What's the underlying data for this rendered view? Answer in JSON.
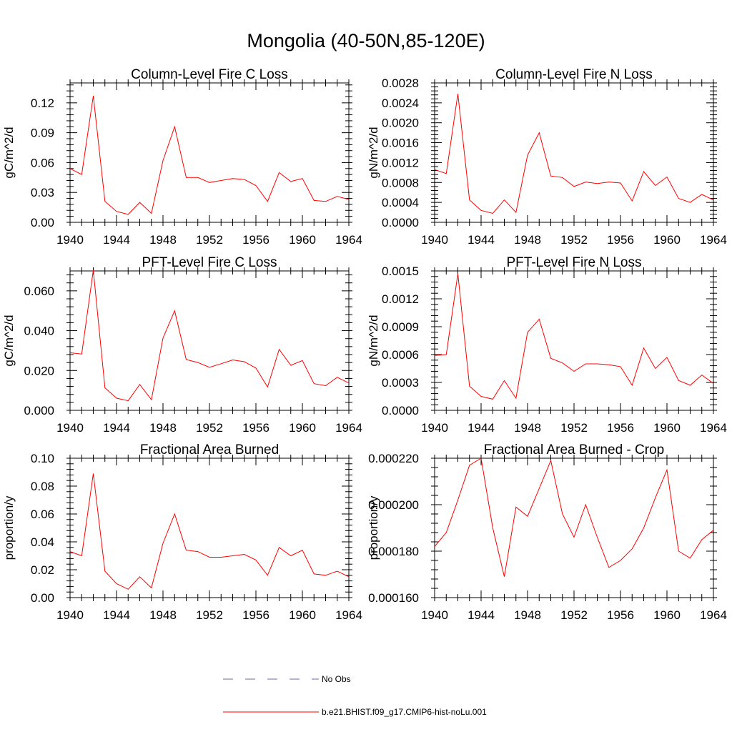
{
  "page_title": "Mongolia (40-50N,85-120E)",
  "legend": {
    "items": [
      {
        "label": "No Obs",
        "color": "#6a6ab0",
        "dash": true
      },
      {
        "label": "b.e21.BHIST.f09_g17.CMIP6-hist-noLu.001",
        "color": "#ff0000",
        "dash": false
      }
    ]
  },
  "chart_data": [
    {
      "type": "line",
      "title": "Column-Level Fire C Loss",
      "ylabel": "gC/m^2/d",
      "xlim": [
        1940,
        1964
      ],
      "ylim": [
        0,
        0.14
      ],
      "xticks": [
        "1940",
        "1944",
        "1948",
        "1952",
        "1956",
        "1960",
        "1964"
      ],
      "yticks": [
        "0.00",
        "0.03",
        "0.06",
        "0.09",
        "0.12"
      ],
      "ytick_values": [
        0,
        0.03,
        0.06,
        0.09,
        0.12
      ],
      "x": [
        1940,
        1941,
        1942,
        1943,
        1944,
        1945,
        1946,
        1947,
        1948,
        1949,
        1950,
        1951,
        1952,
        1953,
        1954,
        1955,
        1956,
        1957,
        1958,
        1959,
        1960,
        1961,
        1962,
        1963,
        1964
      ],
      "series": [
        {
          "name": "b.e21.BHIST.f09_g17.CMIP6-hist-noLu.001",
          "color": "#ff0000",
          "values": [
            0.054,
            0.048,
            0.127,
            0.021,
            0.011,
            0.008,
            0.02,
            0.009,
            0.062,
            0.096,
            0.045,
            0.045,
            0.04,
            0.042,
            0.044,
            0.043,
            0.037,
            0.021,
            0.05,
            0.041,
            0.044,
            0.022,
            0.021,
            0.026,
            0.023
          ]
        }
      ]
    },
    {
      "type": "line",
      "title": "Column-Level Fire N Loss",
      "ylabel": "gN/m^2/d",
      "xlim": [
        1940,
        1964
      ],
      "ylim": [
        0,
        0.0028
      ],
      "xticks": [
        "1940",
        "1944",
        "1948",
        "1952",
        "1956",
        "1960",
        "1964"
      ],
      "yticks": [
        "0.0000",
        "0.0004",
        "0.0008",
        "0.0012",
        "0.0016",
        "0.0020",
        "0.0024",
        "0.0028"
      ],
      "ytick_values": [
        0,
        0.0004,
        0.0008,
        0.0012,
        0.0016,
        0.002,
        0.0024,
        0.0028
      ],
      "x": [
        1940,
        1941,
        1942,
        1943,
        1944,
        1945,
        1946,
        1947,
        1948,
        1949,
        1950,
        1951,
        1952,
        1953,
        1954,
        1955,
        1956,
        1957,
        1958,
        1959,
        1960,
        1961,
        1962,
        1963,
        1964
      ],
      "series": [
        {
          "name": "b.e21.BHIST.f09_g17.CMIP6-hist-noLu.001",
          "color": "#ff0000",
          "values": [
            0.00106,
            0.00098,
            0.00258,
            0.00045,
            0.00024,
            0.00018,
            0.00045,
            0.0002,
            0.00135,
            0.0018,
            0.00093,
            0.0009,
            0.00072,
            0.00081,
            0.00078,
            0.00081,
            0.00079,
            0.00043,
            0.00102,
            0.00074,
            0.00091,
            0.00048,
            0.0004,
            0.00056,
            0.00045
          ]
        }
      ]
    },
    {
      "type": "line",
      "title": "PFT-Level Fire C Loss",
      "ylabel": "gC/m^2/d",
      "xlim": [
        1940,
        1964
      ],
      "ylim": [
        0,
        0.07
      ],
      "xticks": [
        "1940",
        "1944",
        "1948",
        "1952",
        "1956",
        "1960",
        "1964"
      ],
      "yticks": [
        "0.000",
        "0.020",
        "0.040",
        "0.060"
      ],
      "ytick_values": [
        0,
        0.02,
        0.04,
        0.06
      ],
      "x": [
        1940,
        1941,
        1942,
        1943,
        1944,
        1945,
        1946,
        1947,
        1948,
        1949,
        1950,
        1951,
        1952,
        1953,
        1954,
        1955,
        1956,
        1957,
        1958,
        1959,
        1960,
        1961,
        1962,
        1963,
        1964
      ],
      "series": [
        {
          "name": "b.e21.BHIST.f09_g17.CMIP6-hist-noLu.001",
          "color": "#ff0000",
          "values": [
            0.0289,
            0.0283,
            0.0704,
            0.0113,
            0.0061,
            0.0048,
            0.013,
            0.0053,
            0.0363,
            0.05,
            0.0255,
            0.024,
            0.0216,
            0.0234,
            0.0253,
            0.0244,
            0.0212,
            0.0117,
            0.0306,
            0.0226,
            0.025,
            0.0134,
            0.0124,
            0.0166,
            0.0137
          ]
        }
      ]
    },
    {
      "type": "line",
      "title": "PFT-Level Fire N Loss",
      "ylabel": "gN/m^2/d",
      "xlim": [
        1940,
        1964
      ],
      "ylim": [
        0,
        0.0015
      ],
      "xticks": [
        "1940",
        "1944",
        "1948",
        "1952",
        "1956",
        "1960",
        "1964"
      ],
      "yticks": [
        "0.0000",
        "0.0003",
        "0.0006",
        "0.0009",
        "0.0012",
        "0.0015"
      ],
      "ytick_values": [
        0,
        0.0003,
        0.0006,
        0.0009,
        0.0012,
        0.0015
      ],
      "x": [
        1940,
        1941,
        1942,
        1943,
        1944,
        1945,
        1946,
        1947,
        1948,
        1949,
        1950,
        1951,
        1952,
        1953,
        1954,
        1955,
        1956,
        1957,
        1958,
        1959,
        1960,
        1961,
        1962,
        1963,
        1964
      ],
      "series": [
        {
          "name": "b.e21.BHIST.f09_g17.CMIP6-hist-noLu.001",
          "color": "#ff0000",
          "values": [
            0.00059,
            0.0006,
            0.00147,
            0.00026,
            0.00015,
            0.00012,
            0.00032,
            0.00013,
            0.00084,
            0.00098,
            0.00056,
            0.00051,
            0.00042,
            0.0005,
            0.0005,
            0.00049,
            0.00047,
            0.00027,
            0.00067,
            0.00045,
            0.00057,
            0.00032,
            0.00027,
            0.00038,
            0.00029
          ]
        }
      ]
    },
    {
      "type": "line",
      "title": "Fractional Area Burned",
      "ylabel": "proportion/y",
      "xlim": [
        1940,
        1964
      ],
      "ylim": [
        0,
        0.1
      ],
      "xticks": [
        "1940",
        "1944",
        "1948",
        "1952",
        "1956",
        "1960",
        "1964"
      ],
      "yticks": [
        "0.00",
        "0.02",
        "0.04",
        "0.06",
        "0.08",
        "0.10"
      ],
      "ytick_values": [
        0,
        0.02,
        0.04,
        0.06,
        0.08,
        0.1
      ],
      "x": [
        1940,
        1941,
        1942,
        1943,
        1944,
        1945,
        1946,
        1947,
        1948,
        1949,
        1950,
        1951,
        1952,
        1953,
        1954,
        1955,
        1956,
        1957,
        1958,
        1959,
        1960,
        1961,
        1962,
        1963,
        1964
      ],
      "series": [
        {
          "name": "b.e21.BHIST.f09_g17.CMIP6-hist-noLu.001",
          "color": "#ff0000",
          "values": [
            0.033,
            0.03,
            0.089,
            0.019,
            0.01,
            0.006,
            0.015,
            0.007,
            0.039,
            0.06,
            0.034,
            0.033,
            0.029,
            0.029,
            0.03,
            0.031,
            0.027,
            0.016,
            0.036,
            0.03,
            0.034,
            0.017,
            0.016,
            0.019,
            0.015
          ]
        }
      ]
    },
    {
      "type": "line",
      "title": "Fractional Area Burned - Crop",
      "ylabel": "proportion/y",
      "xlim": [
        1940,
        1964
      ],
      "ylim": [
        0.00016,
        0.00022
      ],
      "xticks": [
        "1940",
        "1944",
        "1948",
        "1952",
        "1956",
        "1960",
        "1964"
      ],
      "yticks": [
        "0.000160",
        "0.000180",
        "0.000200",
        "0.000220"
      ],
      "ytick_values": [
        0.00016,
        0.00018,
        0.0002,
        0.00022
      ],
      "x": [
        1940,
        1941,
        1942,
        1943,
        1944,
        1945,
        1946,
        1947,
        1948,
        1949,
        1950,
        1951,
        1952,
        1953,
        1954,
        1955,
        1956,
        1957,
        1958,
        1959,
        1960,
        1961,
        1962,
        1963,
        1964
      ],
      "series": [
        {
          "name": "b.e21.BHIST.f09_g17.CMIP6-hist-noLu.001",
          "color": "#ff0000",
          "values": [
            0.000182,
            0.000188,
            0.000202,
            0.000217,
            0.00022,
            0.00019,
            0.000169,
            0.000199,
            0.000195,
            0.000207,
            0.000219,
            0.000196,
            0.000186,
            0.0002,
            0.000186,
            0.000173,
            0.000176,
            0.000181,
            0.00019,
            0.000203,
            0.000215,
            0.00018,
            0.000177,
            0.000185,
            0.000189
          ]
        }
      ]
    }
  ]
}
